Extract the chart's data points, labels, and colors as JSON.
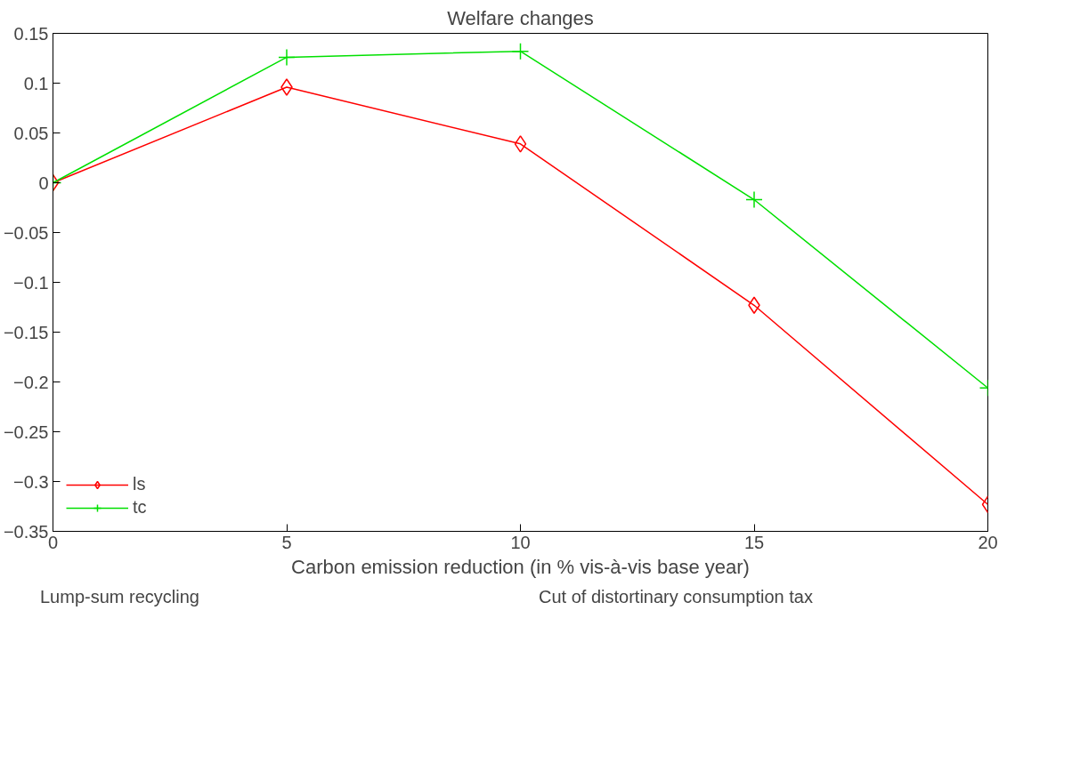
{
  "chart_data": {
    "type": "line",
    "title": "Welfare changes",
    "xlabel": "Carbon emission reduction (in % vis-à-vis base year)",
    "x": [
      0,
      5,
      10,
      15,
      20
    ],
    "series": [
      {
        "name": "ls",
        "color": "#ff0000",
        "marker": "diamond",
        "values": [
          0,
          0.096,
          0.039,
          -0.123,
          -0.323
        ]
      },
      {
        "name": "tc",
        "color": "#00e000",
        "marker": "cross",
        "values": [
          0,
          0.126,
          0.132,
          -0.017,
          -0.206
        ]
      }
    ],
    "xlim": [
      0,
      20
    ],
    "xticks": [
      0,
      5,
      10,
      15,
      20
    ],
    "ylim": [
      -0.35,
      0.15
    ],
    "yticks": [
      -0.35,
      -0.3,
      -0.25,
      -0.2,
      -0.15,
      -0.1,
      -0.05,
      0,
      0.05,
      0.1,
      0.15
    ],
    "grid": false,
    "legend": "bottom left",
    "annotations": [
      "Lump-sum recycling",
      "Cut of distortinary consumption tax"
    ]
  }
}
